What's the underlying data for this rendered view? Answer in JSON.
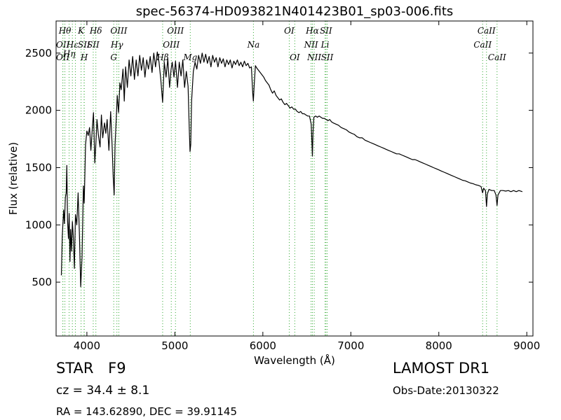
{
  "chart_data": {
    "type": "line",
    "title": "spec-56374-HD093821N401423B01_sp03-006.fits",
    "xlabel": "Wavelength (Å)",
    "ylabel": "Flux (relative)",
    "xlim": [
      3650,
      9070
    ],
    "ylim": [
      30,
      2780
    ],
    "x_ticks": [
      4000,
      5000,
      6000,
      7000,
      8000,
      9000
    ],
    "y_ticks": [
      500,
      1000,
      1500,
      2000,
      2500
    ],
    "grid": false,
    "line_color": "#000000",
    "line_marker_color": "#33aa33",
    "series": [
      {
        "points": [
          [
            3710,
            560
          ],
          [
            3720,
            900
          ],
          [
            3735,
            1130
          ],
          [
            3745,
            1010
          ],
          [
            3755,
            1240
          ],
          [
            3765,
            1280
          ],
          [
            3772,
            1520
          ],
          [
            3780,
            1040
          ],
          [
            3790,
            880
          ],
          [
            3798,
            1100
          ],
          [
            3808,
            680
          ],
          [
            3815,
            960
          ],
          [
            3825,
            770
          ],
          [
            3835,
            1030
          ],
          [
            3845,
            900
          ],
          [
            3858,
            620
          ],
          [
            3870,
            1090
          ],
          [
            3885,
            1000
          ],
          [
            3900,
            1280
          ],
          [
            3915,
            930
          ],
          [
            3930,
            460
          ],
          [
            3945,
            720
          ],
          [
            3960,
            1340
          ],
          [
            3970,
            1190
          ],
          [
            3985,
            1700
          ],
          [
            4000,
            1820
          ],
          [
            4015,
            1780
          ],
          [
            4030,
            1850
          ],
          [
            4045,
            1650
          ],
          [
            4060,
            1820
          ],
          [
            4075,
            1980
          ],
          [
            4090,
            1540
          ],
          [
            4100,
            1680
          ],
          [
            4115,
            1920
          ],
          [
            4130,
            1790
          ],
          [
            4150,
            1680
          ],
          [
            4165,
            1960
          ],
          [
            4180,
            1760
          ],
          [
            4200,
            1890
          ],
          [
            4215,
            1800
          ],
          [
            4230,
            1920
          ],
          [
            4250,
            1650
          ],
          [
            4270,
            1990
          ],
          [
            4285,
            1720
          ],
          [
            4300,
            1410
          ],
          [
            4310,
            1260
          ],
          [
            4320,
            1700
          ],
          [
            4330,
            1860
          ],
          [
            4345,
            2130
          ],
          [
            4360,
            1980
          ],
          [
            4375,
            2240
          ],
          [
            4390,
            2180
          ],
          [
            4410,
            2360
          ],
          [
            4425,
            2080
          ],
          [
            4440,
            2380
          ],
          [
            4460,
            2200
          ],
          [
            4480,
            2440
          ],
          [
            4500,
            2300
          ],
          [
            4520,
            2470
          ],
          [
            4540,
            2270
          ],
          [
            4560,
            2440
          ],
          [
            4580,
            2300
          ],
          [
            4600,
            2480
          ],
          [
            4620,
            2350
          ],
          [
            4640,
            2460
          ],
          [
            4660,
            2290
          ],
          [
            4680,
            2440
          ],
          [
            4700,
            2360
          ],
          [
            4720,
            2470
          ],
          [
            4740,
            2330
          ],
          [
            4760,
            2500
          ],
          [
            4780,
            2380
          ],
          [
            4800,
            2510
          ],
          [
            4820,
            2420
          ],
          [
            4840,
            2270
          ],
          [
            4861,
            2070
          ],
          [
            4880,
            2420
          ],
          [
            4900,
            2290
          ],
          [
            4920,
            2450
          ],
          [
            4940,
            2200
          ],
          [
            4957,
            2360
          ],
          [
            4970,
            2420
          ],
          [
            4990,
            2290
          ],
          [
            5007,
            2430
          ],
          [
            5030,
            2200
          ],
          [
            5050,
            2420
          ],
          [
            5070,
            2300
          ],
          [
            5090,
            2440
          ],
          [
            5110,
            2200
          ],
          [
            5130,
            2340
          ],
          [
            5150,
            2210
          ],
          [
            5165,
            1800
          ],
          [
            5172,
            1640
          ],
          [
            5180,
            1700
          ],
          [
            5190,
            2080
          ],
          [
            5210,
            2340
          ],
          [
            5230,
            2420
          ],
          [
            5250,
            2360
          ],
          [
            5270,
            2480
          ],
          [
            5290,
            2410
          ],
          [
            5310,
            2500
          ],
          [
            5330,
            2420
          ],
          [
            5350,
            2490
          ],
          [
            5370,
            2410
          ],
          [
            5390,
            2470
          ],
          [
            5410,
            2380
          ],
          [
            5430,
            2480
          ],
          [
            5450,
            2420
          ],
          [
            5470,
            2460
          ],
          [
            5490,
            2380
          ],
          [
            5510,
            2460
          ],
          [
            5530,
            2410
          ],
          [
            5550,
            2450
          ],
          [
            5570,
            2380
          ],
          [
            5590,
            2440
          ],
          [
            5610,
            2400
          ],
          [
            5630,
            2440
          ],
          [
            5650,
            2370
          ],
          [
            5670,
            2430
          ],
          [
            5690,
            2400
          ],
          [
            5710,
            2440
          ],
          [
            5730,
            2390
          ],
          [
            5750,
            2420
          ],
          [
            5770,
            2380
          ],
          [
            5790,
            2430
          ],
          [
            5810,
            2390
          ],
          [
            5830,
            2410
          ],
          [
            5850,
            2370
          ],
          [
            5870,
            2380
          ],
          [
            5885,
            2150
          ],
          [
            5892,
            2080
          ],
          [
            5900,
            2200
          ],
          [
            5915,
            2390
          ],
          [
            5930,
            2370
          ],
          [
            5950,
            2350
          ],
          [
            5970,
            2330
          ],
          [
            5990,
            2310
          ],
          [
            6010,
            2290
          ],
          [
            6030,
            2260
          ],
          [
            6050,
            2240
          ],
          [
            6070,
            2220
          ],
          [
            6090,
            2180
          ],
          [
            6110,
            2150
          ],
          [
            6130,
            2170
          ],
          [
            6150,
            2130
          ],
          [
            6170,
            2110
          ],
          [
            6190,
            2090
          ],
          [
            6210,
            2100
          ],
          [
            6230,
            2070
          ],
          [
            6250,
            2050
          ],
          [
            6270,
            2060
          ],
          [
            6290,
            2040
          ],
          [
            6310,
            2020
          ],
          [
            6330,
            2030
          ],
          [
            6350,
            2010
          ],
          [
            6370,
            2010
          ],
          [
            6390,
            1990
          ],
          [
            6410,
            1980
          ],
          [
            6430,
            1990
          ],
          [
            6450,
            1970
          ],
          [
            6470,
            1970
          ],
          [
            6490,
            1960
          ],
          [
            6510,
            1950
          ],
          [
            6530,
            1950
          ],
          [
            6550,
            1880
          ],
          [
            6558,
            1720
          ],
          [
            6563,
            1600
          ],
          [
            6570,
            1800
          ],
          [
            6580,
            1940
          ],
          [
            6600,
            1950
          ],
          [
            6620,
            1940
          ],
          [
            6640,
            1950
          ],
          [
            6660,
            1940
          ],
          [
            6680,
            1930
          ],
          [
            6700,
            1930
          ],
          [
            6720,
            1920
          ],
          [
            6740,
            1910
          ],
          [
            6760,
            1920
          ],
          [
            6780,
            1900
          ],
          [
            6800,
            1890
          ],
          [
            6830,
            1880
          ],
          [
            6860,
            1870
          ],
          [
            6890,
            1850
          ],
          [
            6920,
            1840
          ],
          [
            6950,
            1830
          ],
          [
            6980,
            1810
          ],
          [
            7010,
            1800
          ],
          [
            7040,
            1790
          ],
          [
            7070,
            1770
          ],
          [
            7100,
            1760
          ],
          [
            7130,
            1760
          ],
          [
            7160,
            1740
          ],
          [
            7190,
            1730
          ],
          [
            7220,
            1720
          ],
          [
            7250,
            1710
          ],
          [
            7280,
            1700
          ],
          [
            7310,
            1690
          ],
          [
            7340,
            1680
          ],
          [
            7370,
            1670
          ],
          [
            7400,
            1660
          ],
          [
            7430,
            1650
          ],
          [
            7460,
            1640
          ],
          [
            7490,
            1630
          ],
          [
            7520,
            1620
          ],
          [
            7550,
            1620
          ],
          [
            7580,
            1610
          ],
          [
            7610,
            1600
          ],
          [
            7640,
            1590
          ],
          [
            7670,
            1580
          ],
          [
            7700,
            1570
          ],
          [
            7730,
            1570
          ],
          [
            7760,
            1560
          ],
          [
            7790,
            1550
          ],
          [
            7820,
            1540
          ],
          [
            7850,
            1530
          ],
          [
            7880,
            1520
          ],
          [
            7910,
            1510
          ],
          [
            7940,
            1500
          ],
          [
            7970,
            1490
          ],
          [
            8000,
            1480
          ],
          [
            8030,
            1470
          ],
          [
            8060,
            1460
          ],
          [
            8090,
            1450
          ],
          [
            8120,
            1440
          ],
          [
            8150,
            1430
          ],
          [
            8180,
            1420
          ],
          [
            8210,
            1410
          ],
          [
            8240,
            1400
          ],
          [
            8270,
            1390
          ],
          [
            8300,
            1385
          ],
          [
            8330,
            1375
          ],
          [
            8360,
            1365
          ],
          [
            8390,
            1360
          ],
          [
            8420,
            1350
          ],
          [
            8450,
            1345
          ],
          [
            8480,
            1335
          ],
          [
            8498,
            1280
          ],
          [
            8510,
            1320
          ],
          [
            8530,
            1300
          ],
          [
            8542,
            1160
          ],
          [
            8552,
            1270
          ],
          [
            8570,
            1310
          ],
          [
            8600,
            1300
          ],
          [
            8630,
            1300
          ],
          [
            8650,
            1260
          ],
          [
            8662,
            1170
          ],
          [
            8672,
            1260
          ],
          [
            8700,
            1300
          ],
          [
            8730,
            1300
          ],
          [
            8760,
            1295
          ],
          [
            8790,
            1300
          ],
          [
            8820,
            1290
          ],
          [
            8850,
            1300
          ],
          [
            8880,
            1290
          ],
          [
            8910,
            1300
          ],
          [
            8950,
            1290
          ]
        ]
      }
    ],
    "line_markers": [
      {
        "x": 3727,
        "label": "OII",
        "row": 1,
        "align": "center"
      },
      {
        "x": 3727,
        "label": "OII",
        "row": 2,
        "align": "center"
      },
      {
        "x": 3750,
        "label": "Hθ",
        "row": 0,
        "align": "center"
      },
      {
        "x": 3798,
        "label": "Hη",
        "row": 1.5,
        "align": "center"
      },
      {
        "x": 3835,
        "label": "Hε",
        "row": 1,
        "align": "center"
      },
      {
        "x": 3869,
        "label": "",
        "row": -1,
        "align": "center"
      },
      {
        "x": 3934,
        "label": "K",
        "row": 0,
        "align": "center"
      },
      {
        "x": 3970,
        "label": "H",
        "row": 2,
        "align": "center"
      },
      {
        "x": 3968,
        "label": "SII",
        "row": 1,
        "align": "center"
      },
      {
        "x": 4072,
        "label": "SII",
        "row": 1,
        "align": "center"
      },
      {
        "x": 4102,
        "label": "Hδ",
        "row": 0,
        "align": "center"
      },
      {
        "x": 4305,
        "label": "G",
        "row": 2,
        "align": "center"
      },
      {
        "x": 4341,
        "label": "Hγ",
        "row": 1,
        "align": "center"
      },
      {
        "x": 4363,
        "label": "OIII",
        "row": 0,
        "align": "center"
      },
      {
        "x": 4861,
        "label": "Hβ",
        "row": 2,
        "align": "center"
      },
      {
        "x": 4959,
        "label": "OIII",
        "row": 1,
        "align": "center"
      },
      {
        "x": 5007,
        "label": "OIII",
        "row": 0,
        "align": "center"
      },
      {
        "x": 5175,
        "label": "Mg",
        "row": 2,
        "align": "center"
      },
      {
        "x": 5893,
        "label": "Na",
        "row": 1,
        "align": "center"
      },
      {
        "x": 6300,
        "label": "OI",
        "row": 0,
        "align": "center"
      },
      {
        "x": 6363,
        "label": "OI",
        "row": 2,
        "align": "center"
      },
      {
        "x": 6548,
        "label": "NII",
        "row": 1,
        "align": "center"
      },
      {
        "x": 6563,
        "label": "Hα",
        "row": 0,
        "align": "center"
      },
      {
        "x": 6584,
        "label": "NII",
        "row": 2,
        "align": "center"
      },
      {
        "x": 6707,
        "label": "Li",
        "row": 1,
        "align": "center"
      },
      {
        "x": 6717,
        "label": "SII",
        "row": 0,
        "align": "center"
      },
      {
        "x": 6731,
        "label": "SII",
        "row": 2,
        "align": "center"
      },
      {
        "x": 8498,
        "label": "CaII",
        "row": 1,
        "align": "center"
      },
      {
        "x": 8542,
        "label": "CaII",
        "row": 0,
        "align": "center"
      },
      {
        "x": 8662,
        "label": "CaII",
        "row": 2,
        "align": "center"
      }
    ]
  },
  "info": {
    "object_class": "STAR",
    "subclass": "F9",
    "cz": "cz = 34.4 ± 8.1",
    "coords": "RA = 143.62890, DEC = 39.91145",
    "survey": "LAMOST DR1",
    "obs_date": "Obs-Date:20130322"
  }
}
